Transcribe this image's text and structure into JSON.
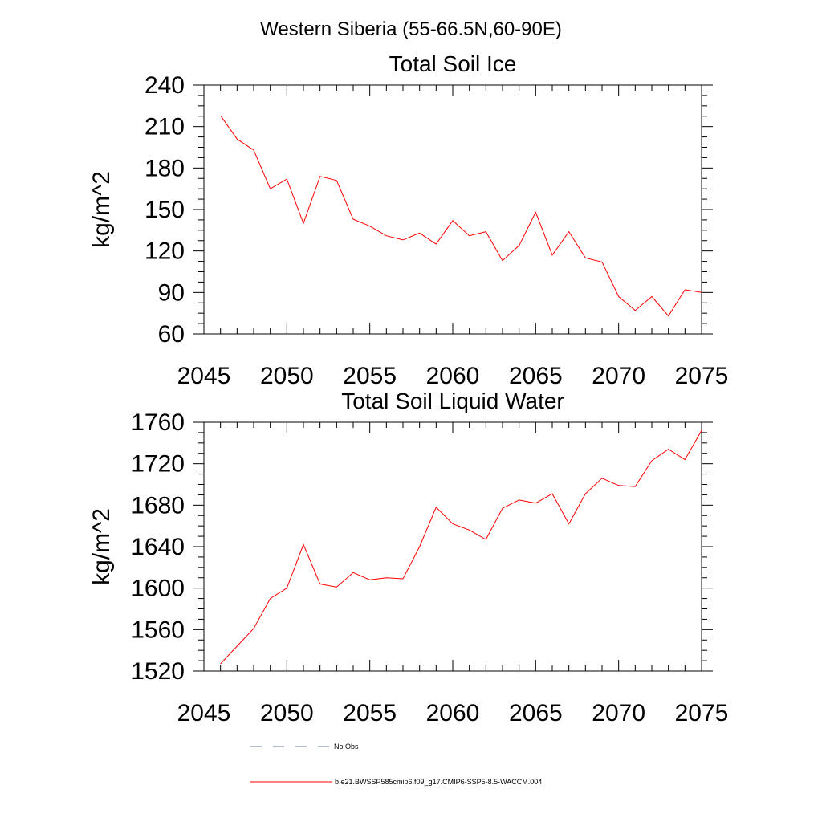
{
  "page": {
    "title": "Western Siberia (55-66.5N,60-90E)"
  },
  "colors": {
    "series": "#ff0000",
    "obs": "#6b7a9c",
    "axes": "#000000"
  },
  "legend": {
    "obs_label": "No Obs",
    "model_label": "b.e21.BWSSP585cmip6.f09_g17.CMIP6-SSP5-8.5-WACCM.004"
  },
  "chart_data": [
    {
      "type": "line",
      "title": "Total Soil Ice",
      "xlabel": "",
      "ylabel": "kg/m^2",
      "xlim": [
        2045,
        2075
      ],
      "ylim": [
        60,
        240
      ],
      "xticks": [
        2045,
        2050,
        2055,
        2060,
        2065,
        2070,
        2075
      ],
      "xtick_labels": [
        "2045",
        "2050",
        "2055",
        "2060",
        "2065",
        "2070",
        "2075"
      ],
      "yticks": [
        60,
        90,
        120,
        150,
        180,
        210,
        240
      ],
      "ytick_labels": [
        "60",
        "90",
        "120",
        "150",
        "180",
        "210",
        "240"
      ],
      "x": [
        2046,
        2047,
        2048,
        2049,
        2050,
        2051,
        2052,
        2053,
        2054,
        2055,
        2056,
        2057,
        2058,
        2059,
        2060,
        2061,
        2062,
        2063,
        2064,
        2065,
        2066,
        2067,
        2068,
        2069,
        2070,
        2071,
        2072,
        2073,
        2074,
        2075
      ],
      "series": [
        {
          "name": "b.e21.BWSSP585cmip6.f09_g17.CMIP6-SSP5-8.5-WACCM.004",
          "values": [
            218,
            201,
            193,
            165,
            172,
            140,
            174,
            171,
            143,
            138,
            131,
            128,
            133,
            125,
            142,
            131,
            134,
            113,
            124,
            148,
            117,
            134,
            115,
            112,
            87,
            77,
            87,
            73,
            92,
            90
          ]
        }
      ]
    },
    {
      "type": "line",
      "title": "Total Soil Liquid Water",
      "xlabel": "",
      "ylabel": "kg/m^2",
      "xlim": [
        2045,
        2075
      ],
      "ylim": [
        1520,
        1760
      ],
      "xticks": [
        2045,
        2050,
        2055,
        2060,
        2065,
        2070,
        2075
      ],
      "xtick_labels": [
        "2045",
        "2050",
        "2055",
        "2060",
        "2065",
        "2070",
        "2075"
      ],
      "yticks": [
        1520,
        1560,
        1600,
        1640,
        1680,
        1720,
        1760
      ],
      "ytick_labels": [
        "1520",
        "1560",
        "1600",
        "1640",
        "1680",
        "1720",
        "1760"
      ],
      "x": [
        2046,
        2047,
        2048,
        2049,
        2050,
        2051,
        2052,
        2053,
        2054,
        2055,
        2056,
        2057,
        2058,
        2059,
        2060,
        2061,
        2062,
        2063,
        2064,
        2065,
        2066,
        2067,
        2068,
        2069,
        2070,
        2071,
        2072,
        2073,
        2074,
        2075
      ],
      "series": [
        {
          "name": "b.e21.BWSSP585cmip6.f09_g17.CMIP6-SSP5-8.5-WACCM.004",
          "values": [
            1527,
            1544,
            1561,
            1590,
            1600,
            1642,
            1604,
            1601,
            1615,
            1608,
            1610,
            1609,
            1640,
            1678,
            1662,
            1656,
            1647,
            1677,
            1685,
            1682,
            1691,
            1662,
            1691,
            1706,
            1699,
            1698,
            1723,
            1734,
            1724,
            1752
          ]
        }
      ]
    }
  ]
}
